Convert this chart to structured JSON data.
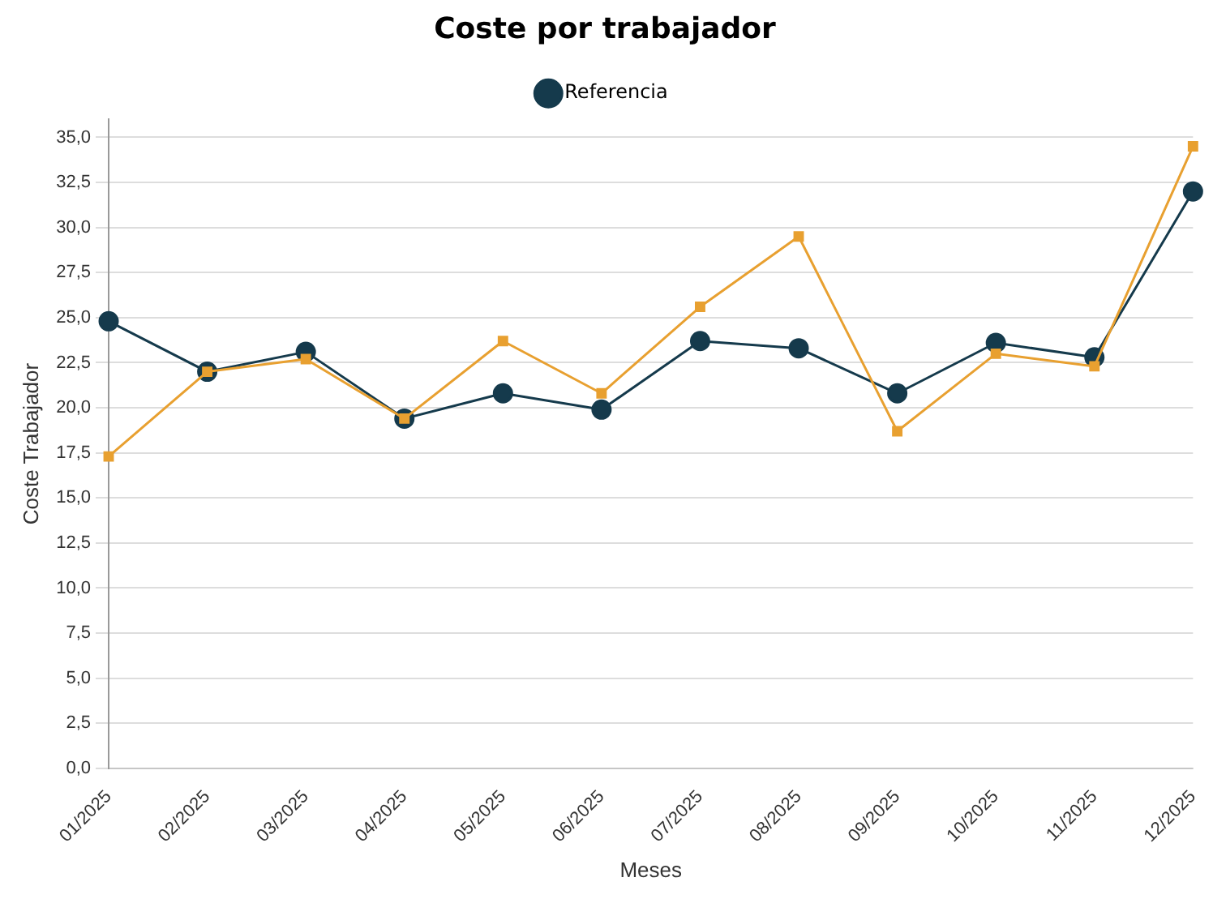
{
  "chart_data": {
    "type": "line",
    "title": "Coste por trabajador",
    "xlabel": "Meses",
    "ylabel": "Coste Trabajador",
    "categories": [
      "01/2025",
      "02/2025",
      "03/2025",
      "04/2025",
      "05/2025",
      "06/2025",
      "07/2025",
      "08/2025",
      "09/2025",
      "10/2025",
      "11/2025",
      "12/2025"
    ],
    "series": [
      {
        "color": "#e8a030",
        "marker": "square",
        "values": [
          17.3,
          22.0,
          22.7,
          19.4,
          23.7,
          20.8,
          25.6,
          29.5,
          18.7,
          23.0,
          22.3,
          34.5
        ]
      },
      {
        "name": "Referencia",
        "color": "#153a4c",
        "marker": "circle",
        "values": [
          24.8,
          22.0,
          23.1,
          19.4,
          20.8,
          19.9,
          23.7,
          23.3,
          20.8,
          23.6,
          22.8,
          32.0
        ]
      }
    ],
    "ylim": [
      0,
      36
    ],
    "yticks": [
      {
        "value": 0,
        "label": "0,0"
      },
      {
        "value": 2.5,
        "label": "2,5"
      },
      {
        "value": 5,
        "label": "5,0"
      },
      {
        "value": 7.5,
        "label": "7,5"
      },
      {
        "value": 10,
        "label": "10,0"
      },
      {
        "value": 12.5,
        "label": "12,5"
      },
      {
        "value": 15,
        "label": "15,0"
      },
      {
        "value": 17.5,
        "label": "17,5"
      },
      {
        "value": 20,
        "label": "20,0"
      },
      {
        "value": 22.5,
        "label": "22,5"
      },
      {
        "value": 25,
        "label": "25,0"
      },
      {
        "value": 27.5,
        "label": "27,5"
      },
      {
        "value": 30,
        "label": "30,0"
      },
      {
        "value": 32.5,
        "label": "32,5"
      },
      {
        "value": 35,
        "label": "35,0"
      }
    ],
    "grid": "y",
    "legend": "top"
  }
}
